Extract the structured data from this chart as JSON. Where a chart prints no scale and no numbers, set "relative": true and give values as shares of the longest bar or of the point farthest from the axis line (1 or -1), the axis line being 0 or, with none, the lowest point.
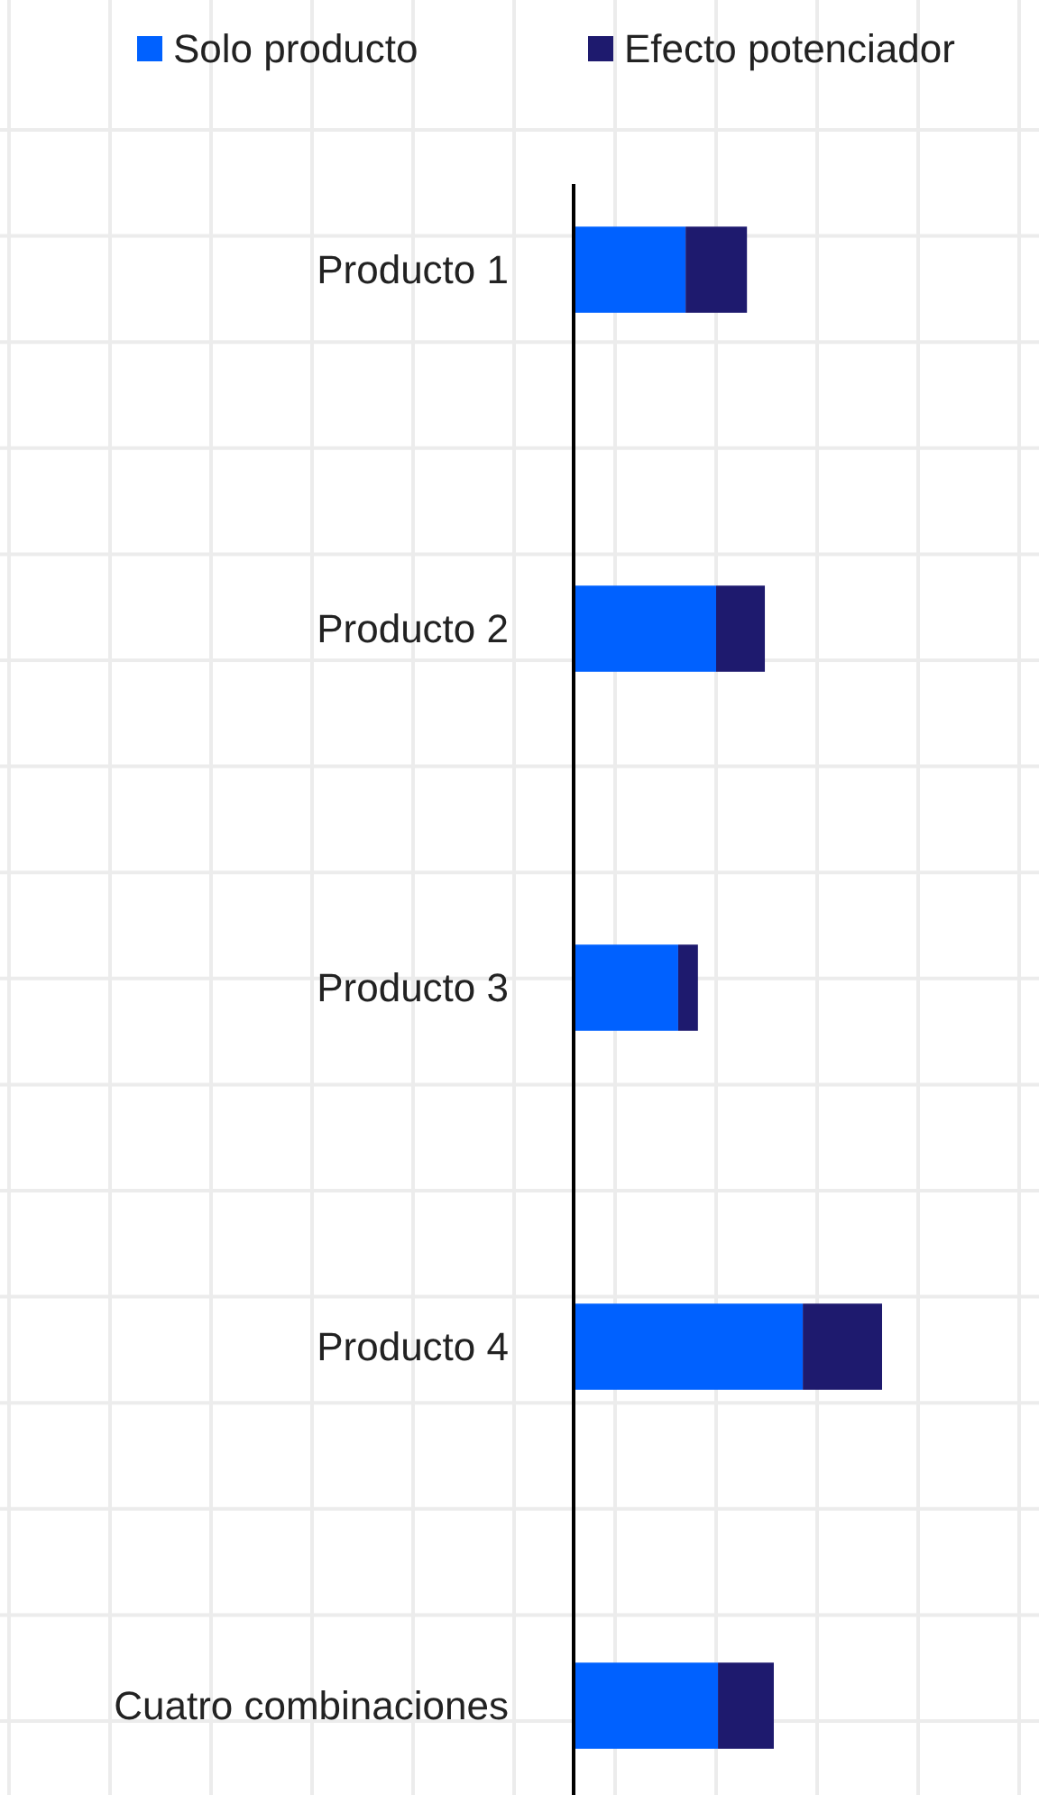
{
  "chart_data": {
    "type": "bar",
    "orientation": "horizontal",
    "stacked": true,
    "relative": true,
    "grid": true,
    "legend": "top",
    "categories": [
      "Producto 1",
      "Producto 2",
      "Producto 3",
      "Producto 4",
      "Cuatro combinaciones"
    ],
    "series": [
      {
        "name": "Solo producto",
        "color": "#0061ff",
        "values": [
          0.363,
          0.462,
          0.339,
          0.743,
          0.468
        ]
      },
      {
        "name": "Efecto potenciador",
        "color": "#1e1a6e",
        "values": [
          0.199,
          0.158,
          0.064,
          0.257,
          0.181
        ]
      }
    ]
  }
}
